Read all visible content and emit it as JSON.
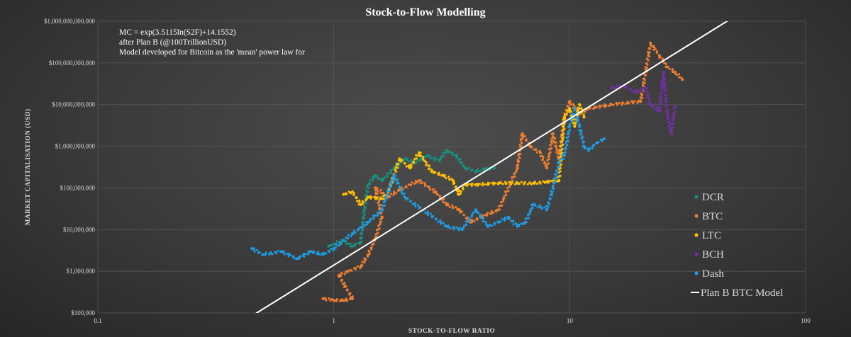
{
  "chart_data": {
    "type": "scatter",
    "title": "Stock-to-Flow  Modelling",
    "xlabel": "STOCK-TO-FLOW RATIO",
    "ylabel": "MARKET CAPITALISATION  (USD)",
    "x_scale": "log",
    "y_scale": "log",
    "xlim": [
      0.1,
      100
    ],
    "ylim": [
      100000,
      1000000000000
    ],
    "grid": true,
    "legend_position": "bottom-right",
    "x_ticks": [
      {
        "value": 0.1,
        "label": "0.1"
      },
      {
        "value": 1,
        "label": "1"
      },
      {
        "value": 10,
        "label": "10"
      },
      {
        "value": 100,
        "label": "100"
      }
    ],
    "y_ticks": [
      {
        "value": 100000,
        "label": "$100,000"
      },
      {
        "value": 1000000,
        "label": "$1,000,000"
      },
      {
        "value": 10000000,
        "label": "$10,000,000"
      },
      {
        "value": 100000000,
        "label": "$100,000,000"
      },
      {
        "value": 1000000000,
        "label": "$1,000,000,000"
      },
      {
        "value": 10000000000,
        "label": "$10,000,000,000"
      },
      {
        "value": 100000000000,
        "label": "$100,000,000,000"
      },
      {
        "value": 1000000000000,
        "label": "$1,000,000,000,000"
      }
    ],
    "annotations": [
      "MC = exp(3.5115ln(S2F)+14.1552)",
      "after Plan B (@100TrillionUSD)",
      "Model developed for Bitcoin as the 'mean' power law for"
    ],
    "model_line": {
      "name": "Plan B BTC Model",
      "color": "#ffffff",
      "slope": 3.5115,
      "intercept": 14.1552
    },
    "series": [
      {
        "name": "DCR",
        "color": "#1a8f80",
        "points": [
          [
            0.95,
            4000000
          ],
          [
            1.0,
            4500000
          ],
          [
            1.1,
            5500000
          ],
          [
            1.2,
            4000000
          ],
          [
            1.3,
            5000000
          ],
          [
            1.35,
            30000000
          ],
          [
            1.4,
            120000000
          ],
          [
            1.5,
            200000000
          ],
          [
            1.6,
            150000000
          ],
          [
            1.8,
            300000000
          ],
          [
            2.0,
            500000000
          ],
          [
            2.2,
            400000000
          ],
          [
            2.5,
            600000000
          ],
          [
            2.8,
            450000000
          ],
          [
            3.0,
            800000000
          ],
          [
            3.3,
            600000000
          ],
          [
            3.6,
            300000000
          ],
          [
            4.0,
            250000000
          ],
          [
            4.3,
            280000000
          ],
          [
            4.8,
            300000000
          ]
        ]
      },
      {
        "name": "BTC",
        "color": "#ed7d31",
        "points": [
          [
            0.9,
            220000
          ],
          [
            1.0,
            200000
          ],
          [
            1.1,
            200000
          ],
          [
            1.2,
            220000
          ],
          [
            1.05,
            800000
          ],
          [
            1.15,
            1000000
          ],
          [
            1.3,
            1300000
          ],
          [
            1.4,
            2500000
          ],
          [
            1.5,
            6000000
          ],
          [
            1.6,
            20000000
          ],
          [
            1.5,
            100000000
          ],
          [
            1.7,
            60000000
          ],
          [
            1.9,
            90000000
          ],
          [
            2.3,
            150000000
          ],
          [
            2.7,
            80000000
          ],
          [
            3.0,
            40000000
          ],
          [
            3.4,
            30000000
          ],
          [
            3.8,
            15000000
          ],
          [
            4.2,
            20000000
          ],
          [
            5.0,
            30000000
          ],
          [
            6.0,
            300000000
          ],
          [
            6.3,
            2000000000
          ],
          [
            6.8,
            1000000000
          ],
          [
            7.5,
            700000000
          ],
          [
            8.0,
            300000000
          ],
          [
            8.5,
            2000000000
          ],
          [
            9.0,
            500000000
          ],
          [
            9.5,
            5000000000
          ],
          [
            10.0,
            12000000000
          ],
          [
            11.0,
            6000000000
          ],
          [
            12.0,
            8000000000
          ],
          [
            15.0,
            10000000000
          ],
          [
            20.0,
            12000000000
          ],
          [
            22.0,
            300000000000
          ],
          [
            24.0,
            150000000000
          ],
          [
            26.0,
            80000000000
          ],
          [
            28.0,
            60000000000
          ],
          [
            30.0,
            40000000000
          ]
        ]
      },
      {
        "name": "LTC",
        "color": "#ffc000",
        "points": [
          [
            1.1,
            70000000
          ],
          [
            1.2,
            80000000
          ],
          [
            1.3,
            40000000
          ],
          [
            1.4,
            60000000
          ],
          [
            1.6,
            55000000
          ],
          [
            1.7,
            80000000
          ],
          [
            1.9,
            500000000
          ],
          [
            2.1,
            300000000
          ],
          [
            2.3,
            700000000
          ],
          [
            2.6,
            250000000
          ],
          [
            2.9,
            200000000
          ],
          [
            3.2,
            150000000
          ],
          [
            3.4,
            70000000
          ],
          [
            3.6,
            120000000
          ],
          [
            4.0,
            120000000
          ],
          [
            5.0,
            130000000
          ],
          [
            6.0,
            130000000
          ],
          [
            7.0,
            130000000
          ],
          [
            8.0,
            140000000
          ],
          [
            9.0,
            150000000
          ],
          [
            9.5,
            5000000000
          ],
          [
            10.0,
            8000000000
          ],
          [
            10.5,
            3000000000
          ],
          [
            11.0,
            10000000000
          ],
          [
            11.5,
            5000000000
          ]
        ]
      },
      {
        "name": "BCH",
        "color": "#7030a0",
        "points": [
          [
            15.0,
            25000000000
          ],
          [
            17.0,
            28000000000
          ],
          [
            19.0,
            20000000000
          ],
          [
            21.0,
            25000000000
          ],
          [
            22.0,
            10000000000
          ],
          [
            24.0,
            7000000000
          ],
          [
            25.0,
            60000000000
          ],
          [
            26.0,
            5000000000
          ],
          [
            27.0,
            2000000000
          ],
          [
            28.0,
            9000000000
          ]
        ]
      },
      {
        "name": "Dash",
        "color": "#1f9be0",
        "points": [
          [
            0.45,
            3500000
          ],
          [
            0.5,
            2500000
          ],
          [
            0.6,
            3000000
          ],
          [
            0.7,
            2000000
          ],
          [
            0.8,
            3000000
          ],
          [
            0.9,
            2500000
          ],
          [
            1.0,
            3500000
          ],
          [
            1.2,
            8000000
          ],
          [
            1.4,
            15000000
          ],
          [
            1.6,
            30000000
          ],
          [
            1.8,
            200000000
          ],
          [
            2.0,
            60000000
          ],
          [
            3.0,
            12000000
          ],
          [
            3.5,
            10000000
          ],
          [
            4.0,
            30000000
          ],
          [
            4.5,
            12000000
          ],
          [
            5.0,
            15000000
          ],
          [
            5.5,
            20000000
          ],
          [
            6.0,
            12000000
          ],
          [
            6.5,
            15000000
          ],
          [
            7.0,
            40000000
          ],
          [
            7.5,
            35000000
          ],
          [
            8.0,
            30000000
          ],
          [
            8.5,
            100000000
          ],
          [
            9.0,
            400000000
          ],
          [
            9.5,
            600000000
          ],
          [
            10.0,
            3000000000
          ],
          [
            10.5,
            8000000000
          ],
          [
            11.0,
            3000000000
          ],
          [
            11.5,
            1000000000
          ],
          [
            12.0,
            800000000
          ],
          [
            13.0,
            1200000000
          ],
          [
            14.0,
            1500000000
          ]
        ]
      }
    ]
  }
}
